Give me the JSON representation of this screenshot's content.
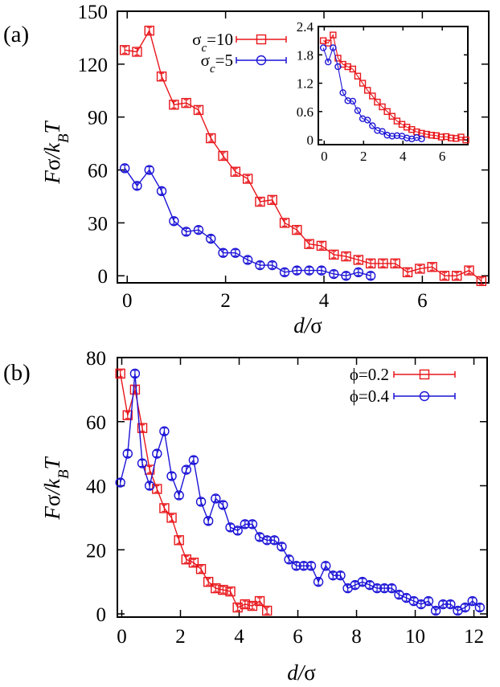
{
  "colors": {
    "series_red": "#e8161b",
    "series_blue": "#1c14d6",
    "axis": "#000000"
  },
  "chart_data": [
    {
      "type": "line",
      "panel_label": "(a)",
      "xlabel": "d/σ",
      "ylabel": "Fσ/k_BT",
      "xlim": [
        -0.2,
        7.35
      ],
      "ylim": [
        -4,
        150
      ],
      "xticks": [
        0,
        2,
        4,
        6
      ],
      "yticks": [
        0,
        30,
        60,
        90,
        120,
        150
      ],
      "grid": false,
      "legend_position": "top-center",
      "series": [
        {
          "name": "σc=10",
          "legend_main": "σ",
          "legend_sub": "c",
          "legend_rest": "=10",
          "marker": "square",
          "color": "#e8161b",
          "x": [
            -0.05,
            0.2,
            0.45,
            0.7,
            0.95,
            1.2,
            1.45,
            1.7,
            1.95,
            2.2,
            2.45,
            2.7,
            2.95,
            3.2,
            3.45,
            3.7,
            3.95,
            4.2,
            4.45,
            4.7,
            4.95,
            5.2,
            5.45,
            5.7,
            5.95,
            6.2,
            6.45,
            6.7,
            6.95,
            7.2
          ],
          "y": [
            128,
            127,
            139,
            113,
            97,
            98,
            94,
            78,
            68,
            59,
            55,
            42,
            43,
            30,
            26,
            18,
            17,
            12,
            11,
            9,
            7,
            7,
            7,
            2,
            4,
            5,
            0,
            0,
            3,
            -3
          ]
        },
        {
          "name": "σc=5",
          "legend_main": "σ",
          "legend_sub": "c",
          "legend_rest": "=5",
          "marker": "circle",
          "color": "#1c14d6",
          "x": [
            -0.05,
            0.2,
            0.45,
            0.7,
            0.95,
            1.2,
            1.45,
            1.7,
            1.95,
            2.2,
            2.45,
            2.7,
            2.95,
            3.2,
            3.45,
            3.7,
            3.95,
            4.2,
            4.45,
            4.7,
            4.95
          ],
          "y": [
            61,
            51,
            60,
            48,
            31,
            25,
            26,
            21,
            13,
            13,
            9,
            6,
            6,
            2,
            3,
            3,
            3,
            1,
            0,
            2,
            0
          ]
        }
      ],
      "inset": {
        "xlim": [
          -0.3,
          7.3
        ],
        "ylim": [
          -0.1,
          2.4
        ],
        "xticks": [
          0,
          2,
          4,
          6
        ],
        "yticks": [
          0,
          0.6,
          1.2,
          1.8,
          2.4
        ],
        "ytick_labels": [
          "0",
          "0.6",
          "1.2",
          "1.8",
          "2.4"
        ],
        "series": [
          {
            "color": "#e8161b",
            "marker": "square",
            "x": [
              -0.05,
              0.2,
              0.45,
              0.7,
              0.95,
              1.2,
              1.45,
              1.7,
              1.95,
              2.2,
              2.45,
              2.7,
              2.95,
              3.2,
              3.45,
              3.7,
              3.95,
              4.2,
              4.45,
              4.7,
              4.95,
              5.2,
              5.45,
              5.7,
              5.95,
              6.2,
              6.45,
              6.7,
              6.95,
              7.2
            ],
            "y": [
              2.1,
              2.05,
              2.22,
              1.73,
              1.6,
              1.55,
              1.5,
              1.35,
              1.2,
              1.05,
              0.93,
              0.8,
              0.7,
              0.6,
              0.5,
              0.4,
              0.33,
              0.27,
              0.22,
              0.17,
              0.14,
              0.12,
              0.1,
              0.09,
              0.06,
              0.07,
              0.04,
              0.03,
              0.06,
              0.0
            ]
          },
          {
            "color": "#1c14d6",
            "marker": "circle",
            "x": [
              -0.05,
              0.2,
              0.45,
              0.7,
              0.95,
              1.2,
              1.45,
              1.7,
              1.95,
              2.2,
              2.45,
              2.7,
              2.95,
              3.2,
              3.45,
              3.7,
              3.95,
              4.2,
              4.45,
              4.7,
              4.95
            ],
            "y": [
              1.95,
              1.65,
              1.95,
              1.55,
              1.0,
              0.83,
              0.82,
              0.62,
              0.45,
              0.42,
              0.3,
              0.2,
              0.18,
              0.1,
              0.08,
              0.09,
              0.08,
              0.04,
              0.02,
              0.05,
              0.02
            ]
          }
        ]
      }
    },
    {
      "type": "line",
      "panel_label": "(b)",
      "xlabel": "d/σ",
      "ylabel": "Fσ/k_BT",
      "xlim": [
        -0.15,
        12.45
      ],
      "ylim": [
        -1,
        80
      ],
      "xticks": [
        0,
        2,
        4,
        6,
        8,
        10,
        12
      ],
      "yticks": [
        0,
        20,
        40,
        60,
        80
      ],
      "grid": false,
      "legend_position": "top-right",
      "series": [
        {
          "name": "ϕ=0.2",
          "legend_main": "ϕ=0.2",
          "marker": "square",
          "color": "#e8161b",
          "x": [
            -0.05,
            0.2,
            0.45,
            0.7,
            0.95,
            1.2,
            1.45,
            1.7,
            1.95,
            2.2,
            2.45,
            2.7,
            2.95,
            3.2,
            3.45,
            3.7,
            3.95,
            4.2,
            4.45,
            4.7,
            4.95
          ],
          "y": [
            75,
            62,
            70,
            58,
            45,
            39,
            33,
            30,
            23,
            17,
            16,
            14,
            10,
            8,
            7.5,
            7,
            2,
            3,
            2.5,
            4,
            1
          ]
        },
        {
          "name": "ϕ=0.4",
          "legend_main": "ϕ=0.4",
          "marker": "circle",
          "color": "#1c14d6",
          "x": [
            -0.05,
            0.2,
            0.45,
            0.7,
            0.95,
            1.2,
            1.45,
            1.7,
            1.95,
            2.2,
            2.45,
            2.7,
            2.95,
            3.2,
            3.45,
            3.7,
            3.95,
            4.2,
            4.45,
            4.7,
            4.95,
            5.2,
            5.45,
            5.7,
            5.95,
            6.2,
            6.45,
            6.7,
            6.95,
            7.2,
            7.45,
            7.7,
            7.95,
            8.2,
            8.45,
            8.7,
            8.95,
            9.2,
            9.45,
            9.7,
            9.95,
            10.2,
            10.45,
            10.7,
            10.95,
            11.2,
            11.45,
            11.7,
            11.95,
            12.2
          ],
          "y": [
            41,
            50,
            75,
            47,
            40,
            50,
            57,
            43,
            37,
            45,
            48,
            35,
            29,
            36,
            34,
            27,
            26,
            28,
            28,
            24,
            23,
            23,
            21,
            17,
            15,
            15,
            15,
            10,
            15,
            12,
            12,
            8,
            9,
            10,
            9,
            8,
            8,
            8,
            6,
            5,
            4,
            3,
            4,
            1,
            3,
            3,
            1,
            2,
            4,
            2
          ]
        }
      ]
    }
  ]
}
